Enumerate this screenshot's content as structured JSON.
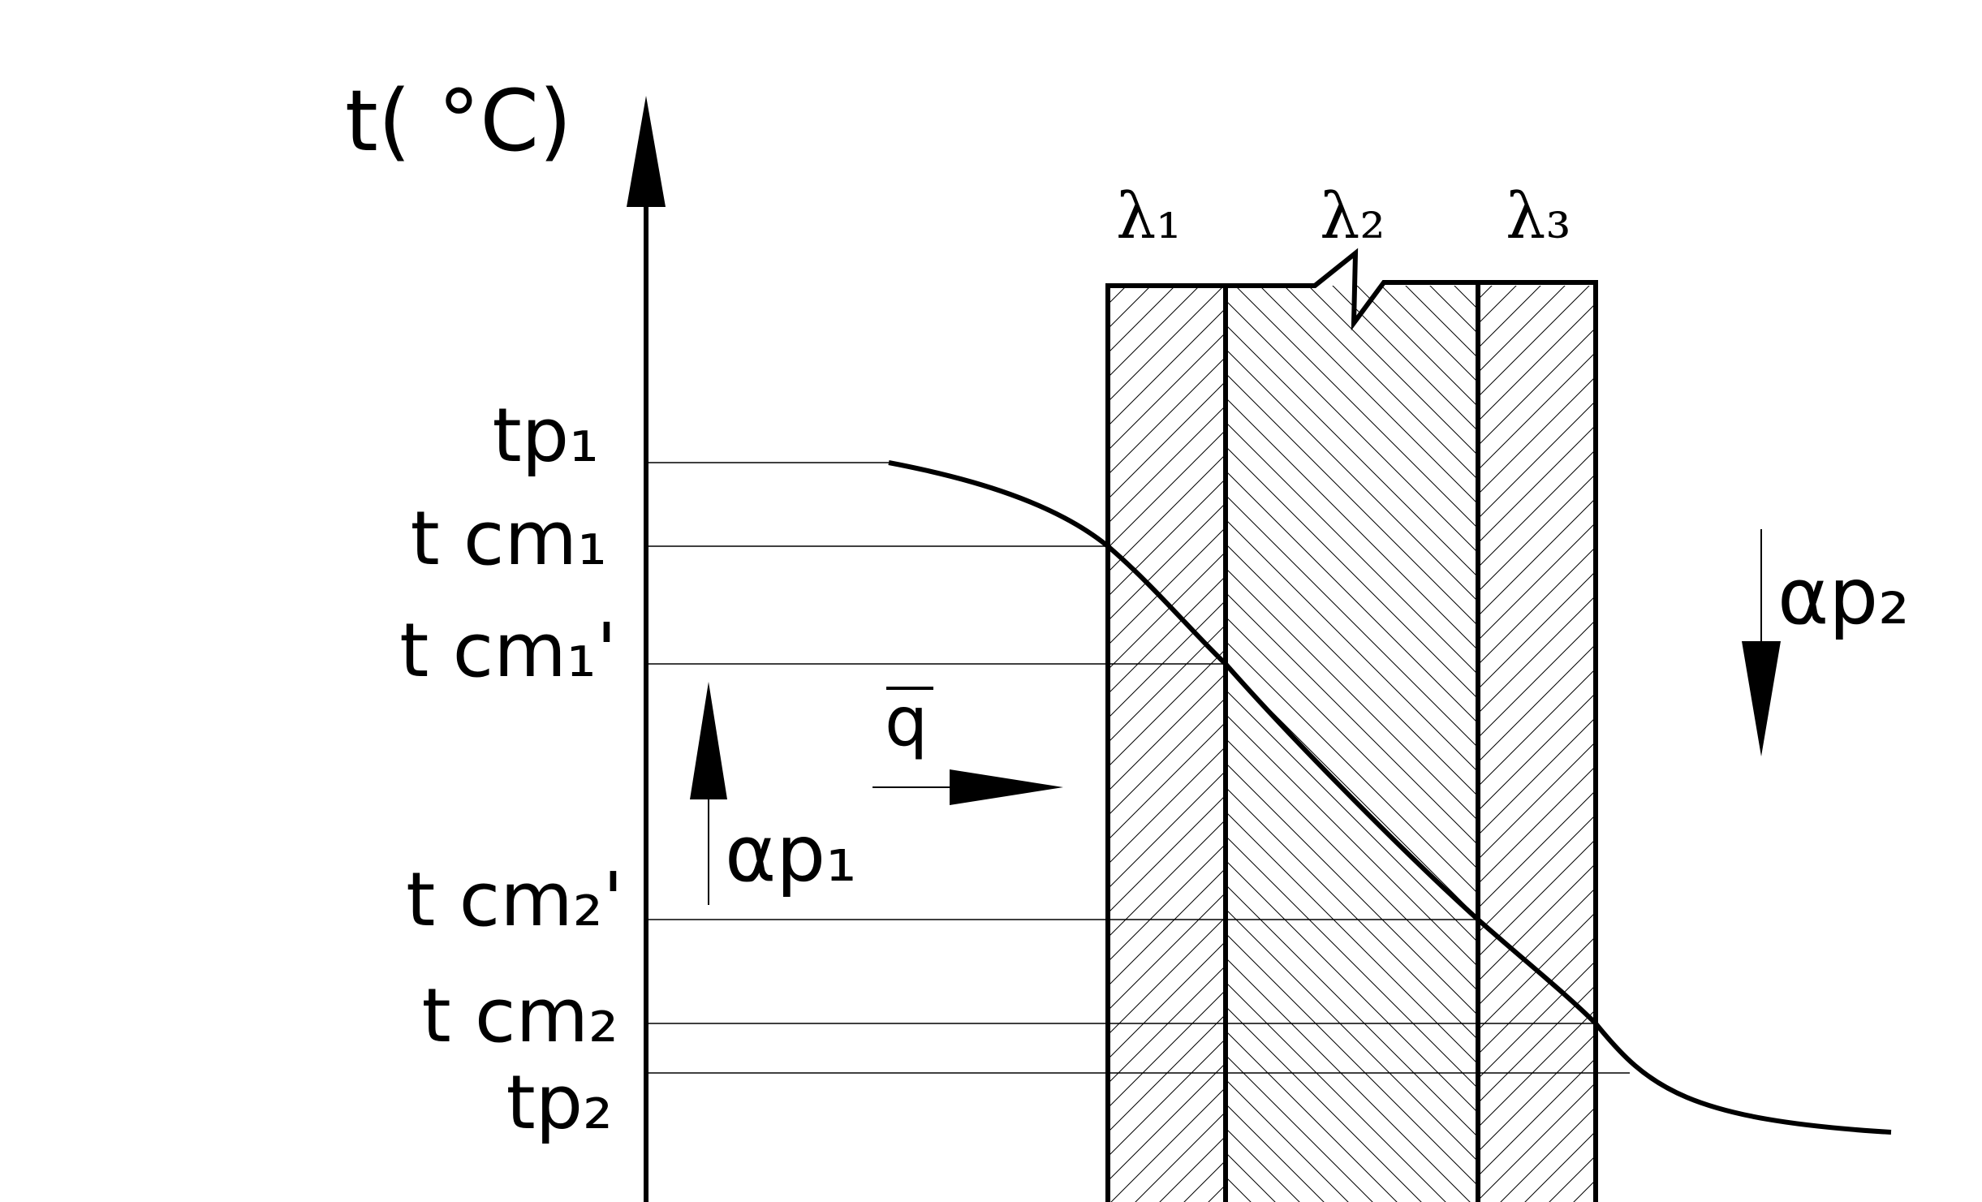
{
  "axis": {
    "y_label": "t( °C)"
  },
  "temperature_levels": [
    {
      "id": "tp1",
      "label": "tp₁"
    },
    {
      "id": "tcm1",
      "label": "t cm₁"
    },
    {
      "id": "tcm1p",
      "label": "t cm₁'"
    },
    {
      "id": "tcm2p",
      "label": "t cm₂'"
    },
    {
      "id": "tcm2",
      "label": "t cm₂"
    },
    {
      "id": "tp2",
      "label": "tp₂"
    }
  ],
  "layers": [
    {
      "id": "layer1",
      "label": "λ₁",
      "hatch": "forward"
    },
    {
      "id": "layer2",
      "label": "λ₂",
      "hatch": "backward"
    },
    {
      "id": "layer3",
      "label": "λ₃",
      "hatch": "forward"
    }
  ],
  "heat_flux": {
    "label": "q"
  },
  "convection": {
    "inner": {
      "label": "αp₁",
      "direction": "up"
    },
    "outer": {
      "label": "αp₂",
      "direction": "down"
    }
  },
  "colors": {
    "line": "#000000",
    "background": "#ffffff"
  }
}
